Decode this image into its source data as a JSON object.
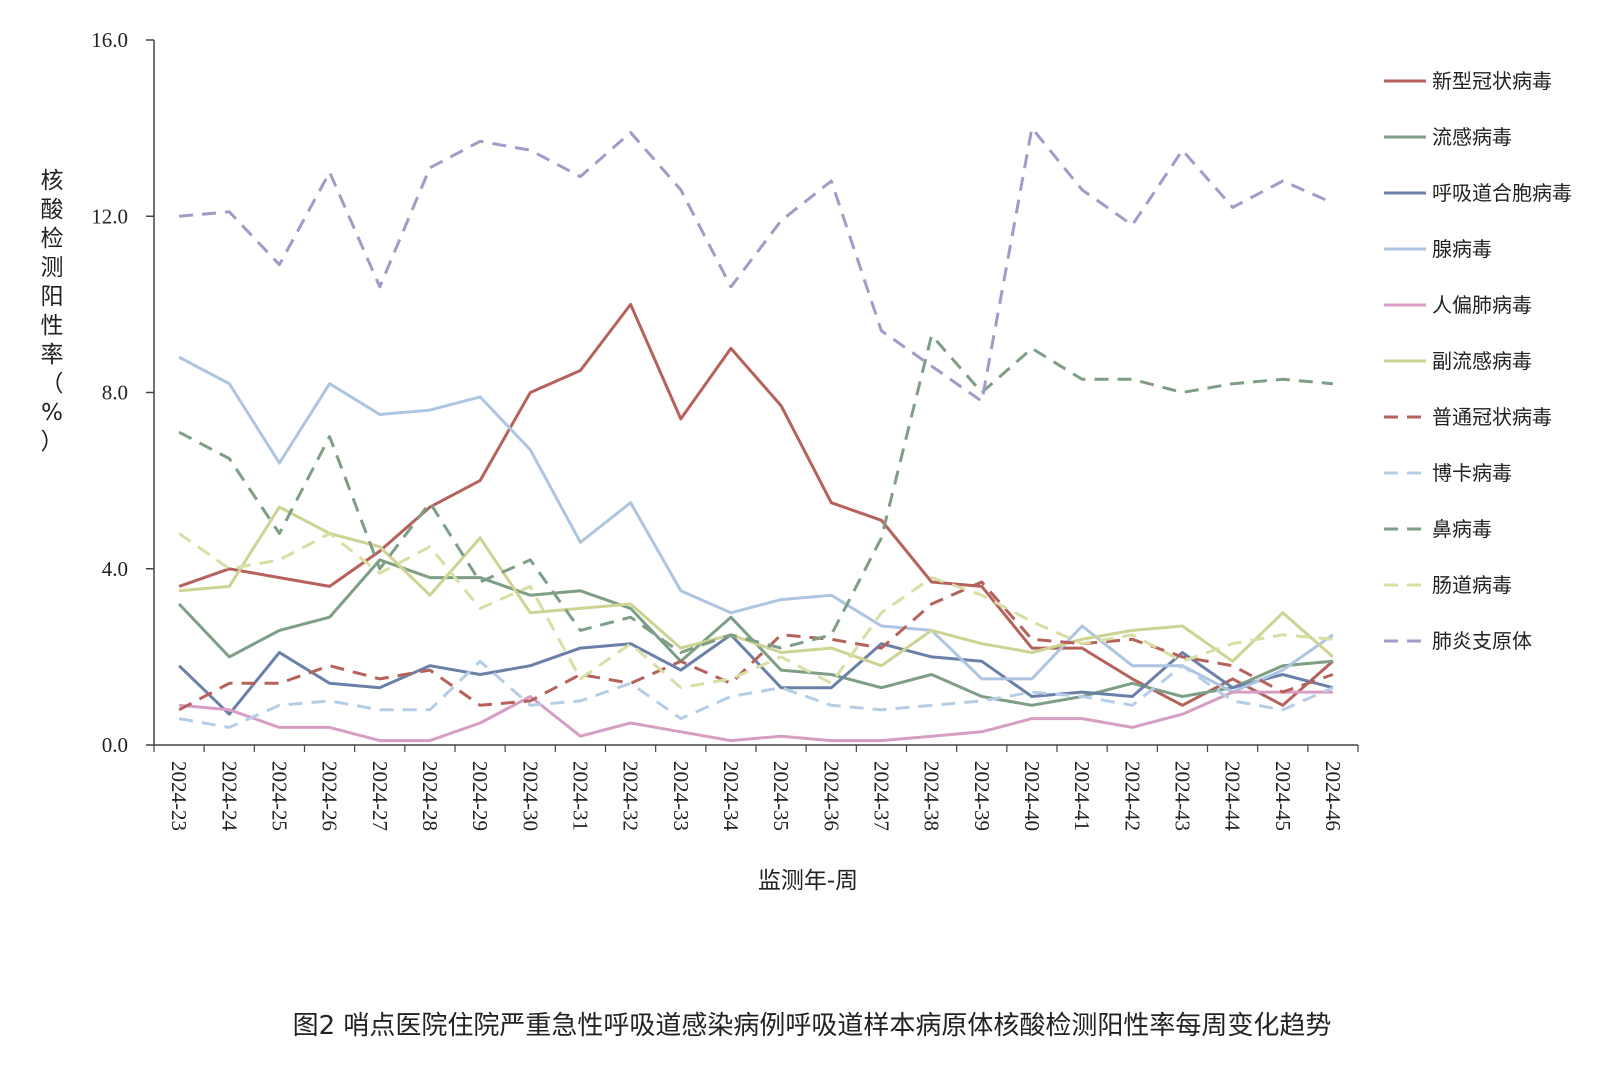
{
  "caption": "图2 哨点医院住院严重急性呼吸道感染病例呼吸道样本病原体核酸检测阳性率每周变化趋势",
  "chart_data": {
    "type": "line",
    "title": "",
    "xlabel": "监测年-周",
    "ylabel": "核酸检测阳性率（%）",
    "ylim": [
      0,
      16
    ],
    "yticks": [
      0,
      4,
      8,
      12,
      16
    ],
    "ytick_labels": [
      "0.0",
      "4.0",
      "8.0",
      "12.0",
      "16.0"
    ],
    "grid": false,
    "legend_position": "right",
    "categories": [
      "2024-23",
      "2024-24",
      "2024-25",
      "2024-26",
      "2024-27",
      "2024-28",
      "2024-29",
      "2024-30",
      "2024-31",
      "2024-32",
      "2024-33",
      "2024-34",
      "2024-35",
      "2024-36",
      "2024-37",
      "2024-38",
      "2024-39",
      "2024-40",
      "2024-41",
      "2024-42",
      "2024-43",
      "2024-44",
      "2024-45",
      "2024-46"
    ],
    "series": [
      {
        "name": "新型冠状病毒",
        "color": "#b5625c",
        "dash": "solid",
        "values": [
          3.6,
          4.0,
          3.8,
          3.6,
          4.4,
          5.4,
          6.0,
          8.0,
          8.5,
          10.0,
          7.4,
          9.0,
          7.7,
          5.5,
          5.1,
          3.7,
          3.6,
          2.2,
          2.2,
          1.5,
          0.9,
          1.5,
          0.9,
          1.9
        ]
      },
      {
        "name": "流感病毒",
        "color": "#7e9e86",
        "dash": "solid",
        "values": [
          3.2,
          2.0,
          2.6,
          2.9,
          4.2,
          3.8,
          3.8,
          3.4,
          3.5,
          3.1,
          1.9,
          2.9,
          1.7,
          1.6,
          1.3,
          1.6,
          1.1,
          0.9,
          1.1,
          1.4,
          1.1,
          1.3,
          1.8,
          1.9
        ]
      },
      {
        "name": "呼吸道合胞病毒",
        "color": "#6b80a8",
        "dash": "solid",
        "values": [
          1.8,
          0.7,
          2.1,
          1.4,
          1.3,
          1.8,
          1.6,
          1.8,
          2.2,
          2.3,
          1.7,
          2.5,
          1.3,
          1.3,
          2.3,
          2.0,
          1.9,
          1.1,
          1.2,
          1.1,
          2.1,
          1.3,
          1.6,
          1.3
        ]
      },
      {
        "name": "腺病毒",
        "color": "#aec5e2",
        "dash": "solid",
        "values": [
          8.8,
          8.2,
          6.4,
          8.2,
          7.5,
          7.6,
          7.9,
          6.7,
          4.6,
          5.5,
          3.5,
          3.0,
          3.3,
          3.4,
          2.7,
          2.6,
          1.5,
          1.5,
          2.7,
          1.8,
          1.8,
          1.2,
          1.7,
          2.5
        ]
      },
      {
        "name": "人偏肺病毒",
        "color": "#d79ec3",
        "dash": "solid",
        "values": [
          0.9,
          0.8,
          0.4,
          0.4,
          0.1,
          0.1,
          0.5,
          1.1,
          0.2,
          0.5,
          0.3,
          0.1,
          0.2,
          0.1,
          0.1,
          0.2,
          0.3,
          0.6,
          0.6,
          0.4,
          0.7,
          1.2,
          1.2,
          1.2
        ]
      },
      {
        "name": "副流感病毒",
        "color": "#cdd392",
        "dash": "solid",
        "values": [
          3.5,
          3.6,
          5.4,
          4.8,
          4.5,
          3.4,
          4.7,
          3.0,
          3.1,
          3.2,
          2.2,
          2.5,
          2.1,
          2.2,
          1.8,
          2.6,
          2.3,
          2.1,
          2.4,
          2.6,
          2.7,
          1.9,
          3.0,
          2.0
        ]
      },
      {
        "name": "普通冠状病毒",
        "color": "#b5625c",
        "dash": "dashed",
        "values": [
          0.8,
          1.4,
          1.4,
          1.8,
          1.5,
          1.7,
          0.9,
          1.0,
          1.6,
          1.4,
          1.9,
          1.4,
          2.5,
          2.4,
          2.2,
          3.2,
          3.7,
          2.4,
          2.3,
          2.4,
          2.0,
          1.8,
          1.2,
          1.6
        ]
      },
      {
        "name": "博卡病毒",
        "color": "#b6cde6",
        "dash": "dashed",
        "values": [
          0.6,
          0.4,
          0.9,
          1.0,
          0.8,
          0.8,
          1.9,
          0.9,
          1.0,
          1.4,
          0.6,
          1.1,
          1.3,
          0.9,
          0.8,
          0.9,
          1.0,
          1.2,
          1.1,
          0.9,
          1.8,
          1.0,
          0.8,
          1.3
        ]
      },
      {
        "name": "鼻病毒",
        "color": "#7e9e86",
        "dash": "dashed",
        "values": [
          7.1,
          6.5,
          4.8,
          7.0,
          4.0,
          5.5,
          3.7,
          4.2,
          2.6,
          2.9,
          2.1,
          2.5,
          2.2,
          2.5,
          4.7,
          9.3,
          8.0,
          9.0,
          8.3,
          8.3,
          8.0,
          8.2,
          8.3,
          8.2
        ]
      },
      {
        "name": "肠道病毒",
        "color": "#d8dea4",
        "dash": "dashed",
        "values": [
          4.8,
          4.0,
          4.2,
          4.8,
          3.9,
          4.5,
          3.1,
          3.6,
          1.5,
          2.3,
          1.3,
          1.5,
          2.0,
          1.4,
          3.0,
          3.8,
          3.4,
          2.8,
          2.3,
          2.5,
          1.9,
          2.3,
          2.5,
          2.4
        ]
      },
      {
        "name": "肺炎支原体",
        "color": "#a09cc8",
        "dash": "dashed",
        "values": [
          12.0,
          12.1,
          10.9,
          13.0,
          10.4,
          13.1,
          13.7,
          13.5,
          12.9,
          13.9,
          12.6,
          10.4,
          11.9,
          12.8,
          9.4,
          8.6,
          7.8,
          14.0,
          12.6,
          11.8,
          13.5,
          12.2,
          12.8,
          12.3
        ]
      }
    ]
  }
}
